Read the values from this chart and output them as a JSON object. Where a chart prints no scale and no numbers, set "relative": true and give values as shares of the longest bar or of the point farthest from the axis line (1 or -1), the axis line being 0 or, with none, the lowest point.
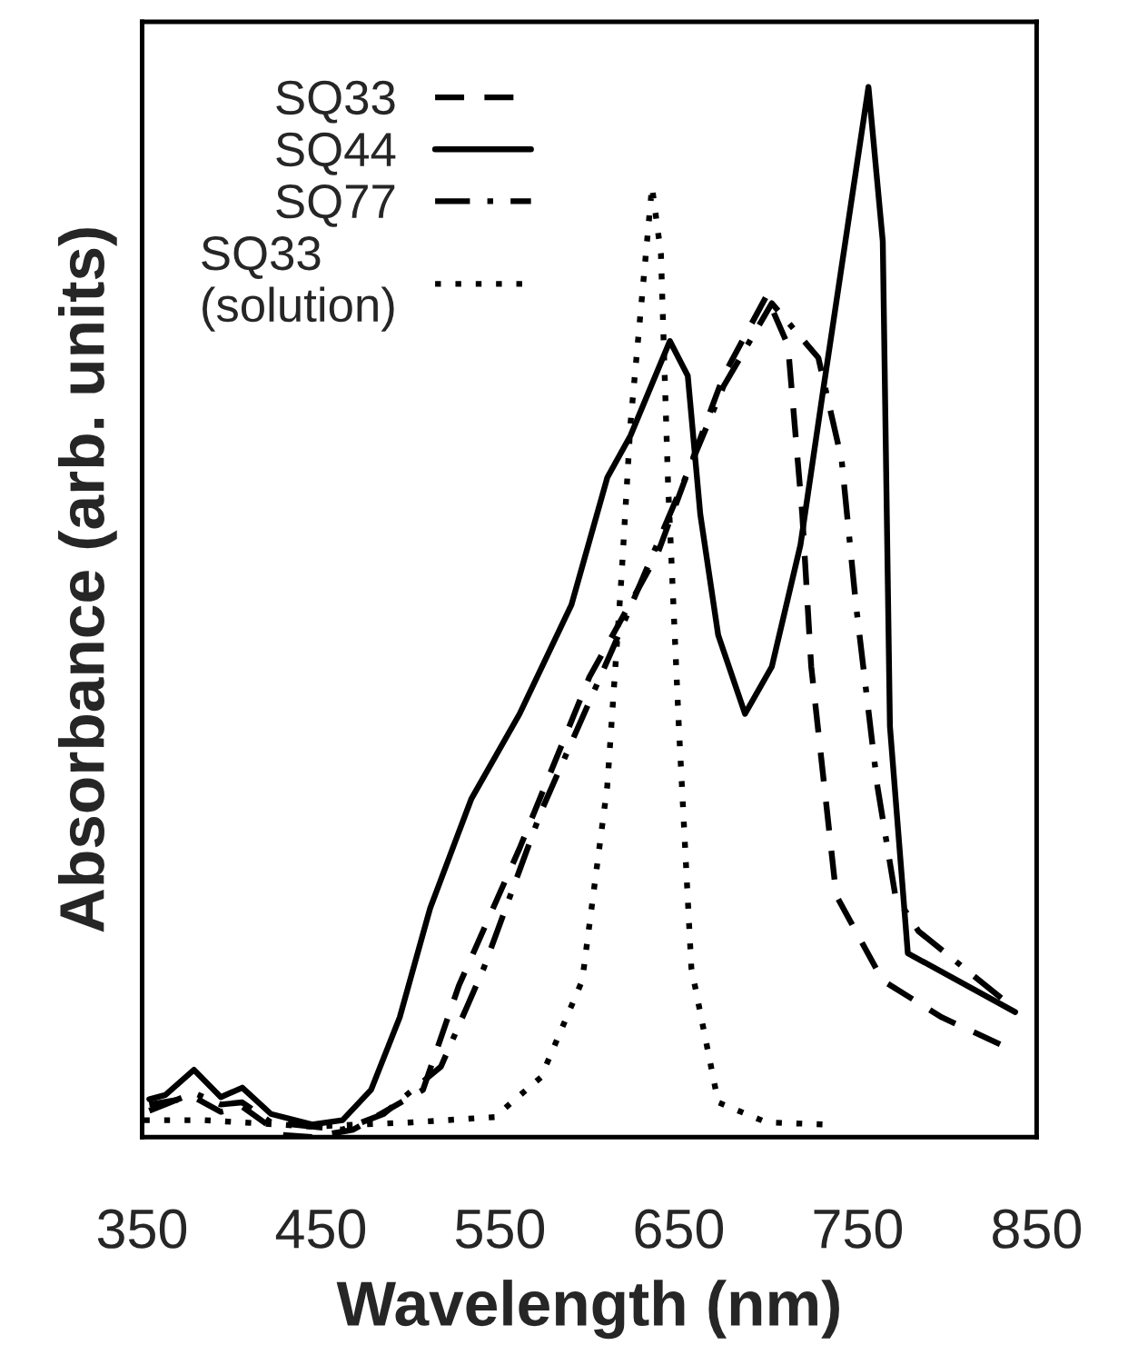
{
  "chart_data": {
    "type": "line",
    "xlabel": "Wavelength (nm)",
    "ylabel": "Absorbance (arb. units)",
    "relative": true,
    "xlim": [
      350,
      850
    ],
    "xticks": [
      350,
      450,
      550,
      650,
      750,
      850
    ],
    "legend": "top left",
    "grid": false,
    "marker": "none",
    "series": [
      {
        "name": "SQ33",
        "color": "#000000",
        "line_style": "dashed",
        "x": [
          354,
          379,
          394,
          406,
          428,
          445,
          468,
          507,
          527,
          561,
          600,
          638,
          675,
          699,
          711,
          719,
          724,
          738,
          764,
          797,
          830
        ],
        "values": [
          0.031,
          0.038,
          0.024,
          0.029,
          0.002,
          0.0,
          0.007,
          0.045,
          0.144,
          0.275,
          0.438,
          0.555,
          0.725,
          0.801,
          0.754,
          0.593,
          0.448,
          0.23,
          0.149,
          0.114,
          0.088
        ]
      },
      {
        "name": "SQ44",
        "color": "#000000",
        "line_style": "solid",
        "x": [
          354,
          363,
          379,
          394,
          406,
          422,
          445,
          462,
          478,
          494,
          511,
          534,
          561,
          590,
          610,
          623,
          645,
          655,
          662,
          672,
          687,
          702,
          718,
          731,
          756,
          764,
          768,
          778,
          838
        ],
        "values": [
          0.036,
          0.04,
          0.064,
          0.038,
          0.047,
          0.022,
          0.012,
          0.016,
          0.045,
          0.114,
          0.218,
          0.322,
          0.403,
          0.507,
          0.628,
          0.668,
          0.758,
          0.725,
          0.593,
          0.478,
          0.403,
          0.448,
          0.564,
          0.715,
          1.0,
          0.853,
          0.391,
          0.175,
          0.119
        ]
      },
      {
        "name": "SQ77",
        "color": "#000000",
        "line_style": "dashdot",
        "x": [
          354,
          379,
          394,
          406,
          422,
          462,
          485,
          517,
          541,
          573,
          613,
          652,
          675,
          702,
          728,
          741,
          749,
          761,
          771,
          784,
          837
        ],
        "values": [
          0.025,
          0.042,
          0.031,
          0.033,
          0.014,
          0.007,
          0.022,
          0.067,
          0.161,
          0.31,
          0.465,
          0.621,
          0.715,
          0.794,
          0.742,
          0.645,
          0.507,
          0.334,
          0.23,
          0.196,
          0.123
        ]
      },
      {
        "name": "SQ33\n(solution)",
        "color": "#000000",
        "line_style": "dotted",
        "x": [
          351,
          385,
          445,
          501,
          547,
          573,
          596,
          610,
          618,
          623,
          635,
          640,
          644,
          650,
          657,
          672,
          699,
          731
        ],
        "values": [
          0.016,
          0.016,
          0.01,
          0.014,
          0.019,
          0.057,
          0.149,
          0.334,
          0.535,
          0.68,
          0.905,
          0.841,
          0.621,
          0.391,
          0.161,
          0.033,
          0.014,
          0.012
        ]
      }
    ]
  }
}
